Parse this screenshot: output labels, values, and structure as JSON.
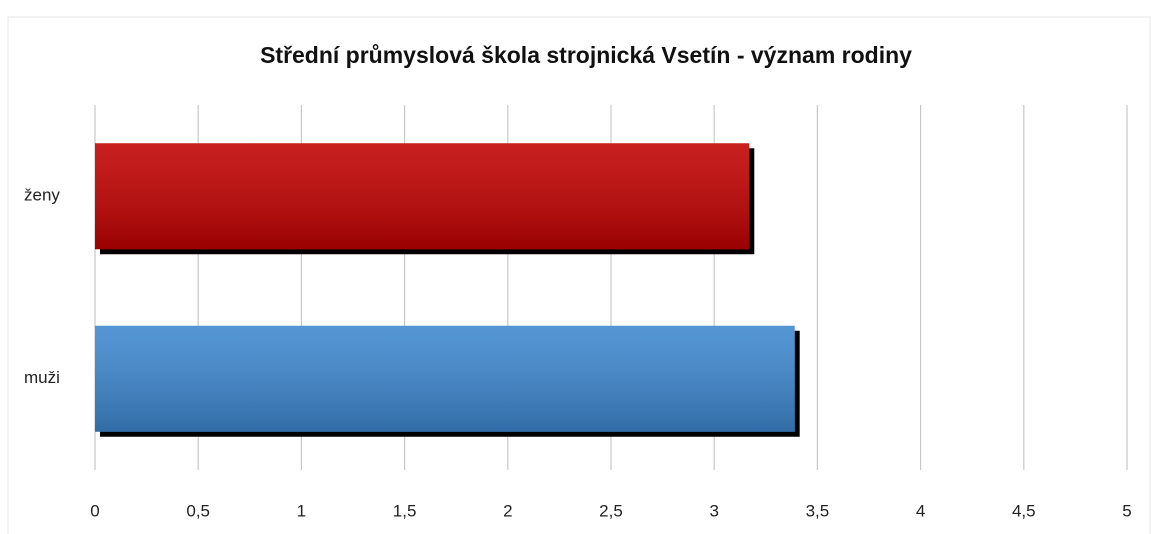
{
  "chart_data": {
    "type": "barh",
    "title": "Střední průmyslová škola strojnická Vsetín - význam rodiny",
    "categories": [
      "ženy",
      "muži"
    ],
    "values": [
      3.17,
      3.39
    ],
    "colors": [
      "#c00000",
      "#3d87cf"
    ],
    "xlim": [
      0,
      5
    ],
    "xticks": [
      0,
      {
        "value": 0.5,
        "label": "0,5"
      },
      1,
      {
        "value": 1.5,
        "label": "1,5"
      },
      2,
      {
        "value": 2.5,
        "label": "2,5"
      },
      3,
      {
        "value": 3.5,
        "label": "3,5"
      },
      4,
      {
        "value": 4.5,
        "label": "4,5"
      },
      5
    ],
    "grid": true
  }
}
